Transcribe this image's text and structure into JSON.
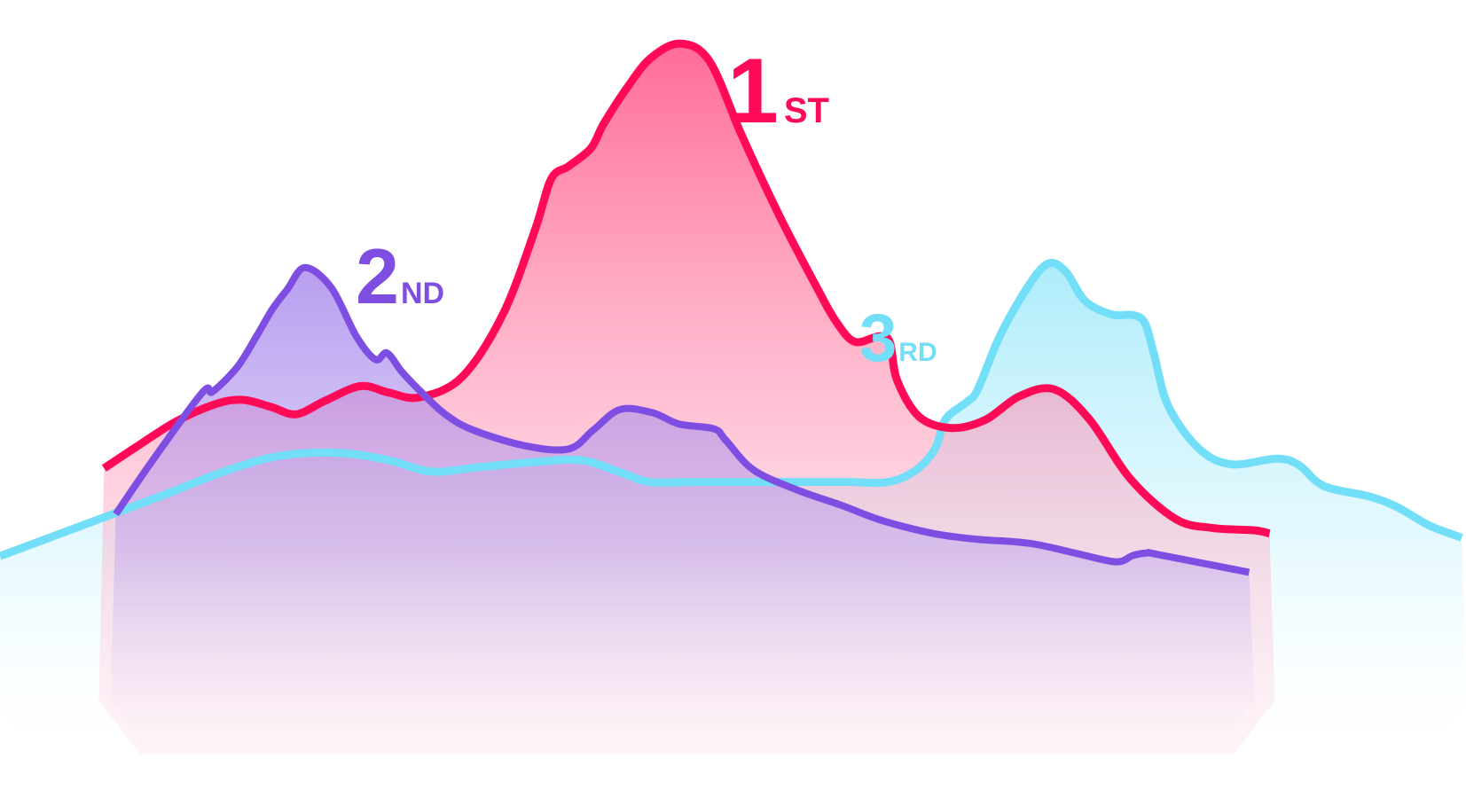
{
  "chart_data": {
    "type": "area",
    "title": "",
    "xlabel": "",
    "ylabel": "",
    "grid": false,
    "legend": "none",
    "xlim": [
      0,
      100
    ],
    "ylim": [
      0,
      100
    ],
    "series": [
      {
        "key": "first",
        "color": "#ff0a57",
        "label": {
          "number": "1",
          "suffix": "ST"
        },
        "points": [
          [
            7.1,
            41.9
          ],
          [
            9.5,
            44.8
          ],
          [
            12,
            47.7
          ],
          [
            14.6,
            49.8
          ],
          [
            16.5,
            50.4
          ],
          [
            18.5,
            49.5
          ],
          [
            20.2,
            48.6
          ],
          [
            22.2,
            50.3
          ],
          [
            24.6,
            52.1
          ],
          [
            26.5,
            51.3
          ],
          [
            28.6,
            50.7
          ],
          [
            31.5,
            53.2
          ],
          [
            34.3,
            61
          ],
          [
            36.5,
            71.5
          ],
          [
            37.6,
            77.8
          ],
          [
            38.8,
            79.4
          ],
          [
            40.3,
            81.6
          ],
          [
            41.2,
            84.7
          ],
          [
            42.8,
            89.2
          ],
          [
            44.4,
            92.8
          ],
          [
            46.4,
            94.6
          ],
          [
            48.4,
            92.4
          ],
          [
            50.6,
            83.2
          ],
          [
            53.2,
            73.1
          ],
          [
            55.7,
            64.4
          ],
          [
            57,
            60.2
          ],
          [
            58.3,
            57.6
          ],
          [
            60,
            58.3
          ],
          [
            60.7,
            57.5
          ],
          [
            61.2,
            52.8
          ],
          [
            62.7,
            48.3
          ],
          [
            64.9,
            46.9
          ],
          [
            67.2,
            47.9
          ],
          [
            69.5,
            50.8
          ],
          [
            71.9,
            51.7
          ],
          [
            74.3,
            48
          ],
          [
            77.1,
            40.6
          ],
          [
            80.2,
            35.6
          ],
          [
            82.7,
            34.5
          ],
          [
            85.6,
            34.2
          ],
          [
            86.6,
            33.8
          ]
        ]
      },
      {
        "key": "second",
        "color": "#7e4ee3",
        "label": {
          "number": "2",
          "suffix": "ND"
        },
        "points": [
          [
            7.9,
            36.2
          ],
          [
            10.3,
            42.6
          ],
          [
            13.8,
            51.3
          ],
          [
            14.5,
            51.4
          ],
          [
            16.2,
            54.5
          ],
          [
            17.5,
            58.3
          ],
          [
            18.6,
            61.7
          ],
          [
            19.6,
            64.1
          ],
          [
            20.8,
            66.8
          ],
          [
            22.6,
            64.3
          ],
          [
            24.3,
            58.3
          ],
          [
            25.6,
            55.4
          ],
          [
            26.4,
            56.2
          ],
          [
            27.4,
            53.9
          ],
          [
            28.6,
            51.6
          ],
          [
            30.3,
            48.7
          ],
          [
            32.2,
            46.7
          ],
          [
            35.8,
            44.7
          ],
          [
            38.8,
            44.3
          ],
          [
            40.5,
            46.7
          ],
          [
            42.3,
            49.2
          ],
          [
            44.5,
            48.8
          ],
          [
            46.3,
            47.4
          ],
          [
            48.7,
            46.8
          ],
          [
            49.5,
            45.4
          ],
          [
            51.4,
            41.7
          ],
          [
            54.4,
            39.2
          ],
          [
            57.4,
            37.3
          ],
          [
            60.2,
            35.4
          ],
          [
            63.7,
            33.8
          ],
          [
            66.6,
            33.1
          ],
          [
            70.2,
            32.6
          ],
          [
            73.3,
            31.4
          ],
          [
            76.1,
            30.3
          ],
          [
            77.3,
            31.1
          ],
          [
            78.3,
            31.4
          ],
          [
            79,
            31.2
          ],
          [
            85.2,
            29
          ]
        ]
      },
      {
        "key": "third",
        "color": "#72def8",
        "label": {
          "number": "3",
          "suffix": "RD"
        },
        "points": [
          [
            0,
            31
          ],
          [
            5.3,
            34.6
          ],
          [
            10.6,
            38.2
          ],
          [
            15.6,
            41.7
          ],
          [
            19.3,
            43.5
          ],
          [
            23.2,
            43.8
          ],
          [
            26.5,
            42.9
          ],
          [
            29.4,
            41.5
          ],
          [
            32.5,
            42
          ],
          [
            36,
            42.6
          ],
          [
            39.6,
            42.9
          ],
          [
            42.3,
            41.4
          ],
          [
            44.3,
            40.2
          ],
          [
            47.1,
            40.2
          ],
          [
            52.6,
            40.2
          ],
          [
            57.8,
            40.2
          ],
          [
            60.6,
            40.2
          ],
          [
            62.5,
            41.7
          ],
          [
            63.8,
            44.4
          ],
          [
            64.5,
            48
          ],
          [
            66,
            50.2
          ],
          [
            66.7,
            51.7
          ],
          [
            68.2,
            58.3
          ],
          [
            70.1,
            64.4
          ],
          [
            71.5,
            67.3
          ],
          [
            72.7,
            66.3
          ],
          [
            74,
            62.7
          ],
          [
            75.8,
            61
          ],
          [
            77.3,
            60.9
          ],
          [
            78.1,
            59.9
          ],
          [
            78.7,
            56.2
          ],
          [
            79.7,
            49.6
          ],
          [
            81.8,
            44.3
          ],
          [
            84,
            42.4
          ],
          [
            87.1,
            43.1
          ],
          [
            88.6,
            42.3
          ],
          [
            90.3,
            39.7
          ],
          [
            93.4,
            38.4
          ],
          [
            95.3,
            37.1
          ],
          [
            97.5,
            34.8
          ],
          [
            99.7,
            33.3
          ]
        ]
      }
    ]
  }
}
